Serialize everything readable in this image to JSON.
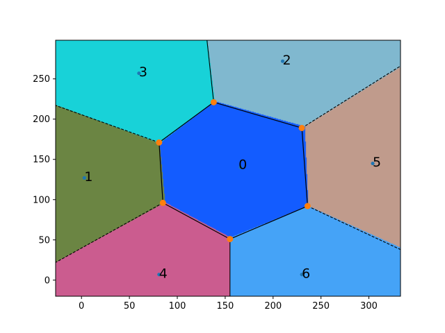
{
  "chart_data": {
    "type": "voronoi",
    "title": "",
    "xlabel": "",
    "ylabel": "",
    "xlim": [
      -27,
      333
    ],
    "ylim": [
      -20,
      298
    ],
    "xticks": [
      0,
      50,
      100,
      150,
      200,
      250,
      300
    ],
    "yticks": [
      0,
      50,
      100,
      150,
      200,
      250
    ],
    "grid": false,
    "sites": [
      {
        "label": "0",
        "x": 166,
        "y": 140,
        "color": "#135cff",
        "text_x": 164,
        "text_y": 138
      },
      {
        "label": "1",
        "x": 3,
        "y": 127,
        "color": "#6b8543",
        "text_x": 3,
        "text_y": 123
      },
      {
        "label": "2",
        "x": 210,
        "y": 272,
        "color": "#80b8cf",
        "text_x": 210,
        "text_y": 268
      },
      {
        "label": "3",
        "x": 60,
        "y": 257,
        "color": "#18d2d8",
        "text_x": 60,
        "text_y": 253
      },
      {
        "label": "4",
        "x": 81,
        "y": 7,
        "color": "#cb5c8f",
        "text_x": 81,
        "text_y": 3
      },
      {
        "label": "5",
        "x": 304,
        "y": 145,
        "color": "#c09b8c",
        "text_x": 304,
        "text_y": 141
      },
      {
        "label": "6",
        "x": 230,
        "y": 7,
        "color": "#45a3f7",
        "text_x": 230,
        "text_y": 3
      }
    ],
    "vertices": [
      {
        "x": 138,
        "y": 221
      },
      {
        "x": 230,
        "y": 189
      },
      {
        "x": 236,
        "y": 92
      },
      {
        "x": 155,
        "y": 51
      },
      {
        "x": 85,
        "y": 96
      },
      {
        "x": 81,
        "y": 171
      }
    ],
    "edges": [
      [
        0,
        1
      ],
      [
        1,
        2
      ],
      [
        2,
        3
      ],
      [
        3,
        4
      ],
      [
        4,
        5
      ],
      [
        5,
        0
      ]
    ],
    "rays": [
      {
        "from": 0,
        "to": [
          131,
          298
        ],
        "style": "solid"
      },
      {
        "from": 1,
        "to": [
          333,
          266
        ],
        "style": "dashed"
      },
      {
        "from": 2,
        "to": [
          333,
          38
        ],
        "style": "dashed"
      },
      {
        "from": 3,
        "to": [
          155,
          -20
        ],
        "style": "solid"
      },
      {
        "from": 4,
        "to": [
          -27,
          22
        ],
        "style": "dashed"
      },
      {
        "from": 5,
        "to": [
          -27,
          217
        ],
        "style": "dashed"
      }
    ],
    "colors": {
      "edge": "#000000",
      "vertex": "#ff7f0e",
      "site": "#1f77b4",
      "frame": "#000000"
    }
  }
}
